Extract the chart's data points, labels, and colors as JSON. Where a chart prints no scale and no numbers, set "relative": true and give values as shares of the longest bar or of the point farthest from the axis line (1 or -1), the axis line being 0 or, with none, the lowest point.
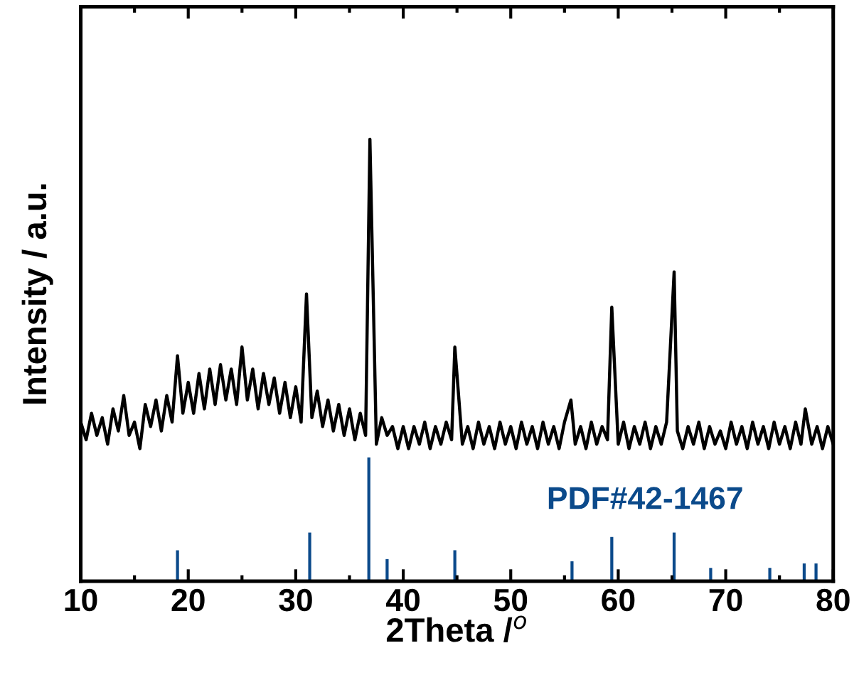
{
  "chart_data": {
    "type": "line",
    "relative": true,
    "xlabel": "2Theta /$^{o}$",
    "ylabel": "Intensity / a.u.",
    "xlim": [
      10,
      80
    ],
    "xticks": [
      10,
      20,
      30,
      40,
      50,
      60,
      70,
      80
    ],
    "grid": false,
    "legend": false,
    "marker": "none",
    "line_style": "solid",
    "tick_labels": "x",
    "series": [
      {
        "color": "#000000",
        "x": [
          10,
          10.5,
          11,
          11.5,
          12,
          12.5,
          13,
          13.5,
          14,
          14.5,
          15,
          15.5,
          16,
          16.5,
          17,
          17.5,
          18,
          18.5,
          19.0,
          19.5,
          20,
          20.5,
          21,
          21.5,
          22,
          22.5,
          23,
          23.5,
          24,
          24.5,
          25,
          25.5,
          26,
          26.5,
          27,
          27.5,
          28,
          28.5,
          29,
          29.5,
          30,
          30.5,
          31.0,
          31.5,
          32,
          32.5,
          33,
          33.5,
          34,
          34.5,
          35,
          35.5,
          36,
          36.5,
          36.9,
          37.5,
          38,
          38.5,
          39,
          39.5,
          40,
          40.5,
          41,
          41.5,
          42,
          42.5,
          43,
          43.5,
          44,
          44.5,
          44.8,
          45.5,
          46,
          46.5,
          47,
          47.5,
          48,
          48.5,
          49,
          49.5,
          50,
          50.5,
          51,
          51.5,
          52,
          52.5,
          53,
          53.5,
          54,
          54.5,
          55,
          55.6,
          56,
          56.5,
          57,
          57.5,
          58,
          58.5,
          59,
          59.4,
          60,
          60.5,
          61,
          61.5,
          62,
          62.5,
          63,
          63.5,
          64,
          64.5,
          65.2,
          65.5,
          66,
          66.5,
          67,
          67.5,
          68,
          68.5,
          69,
          69.5,
          70,
          70.5,
          71,
          71.5,
          72,
          72.5,
          73,
          73.5,
          74,
          74.5,
          75,
          75.5,
          76,
          76.5,
          77,
          77.4,
          78,
          78.5,
          79,
          79.5,
          80
        ],
        "values": [
          0.36,
          0.32,
          0.38,
          0.33,
          0.37,
          0.31,
          0.39,
          0.34,
          0.42,
          0.33,
          0.36,
          0.3,
          0.4,
          0.35,
          0.41,
          0.34,
          0.42,
          0.36,
          0.51,
          0.38,
          0.45,
          0.38,
          0.47,
          0.39,
          0.48,
          0.4,
          0.49,
          0.41,
          0.48,
          0.4,
          0.53,
          0.41,
          0.48,
          0.39,
          0.47,
          0.4,
          0.46,
          0.38,
          0.45,
          0.37,
          0.44,
          0.36,
          0.65,
          0.37,
          0.43,
          0.35,
          0.41,
          0.34,
          0.4,
          0.33,
          0.39,
          0.32,
          0.38,
          0.33,
          1.0,
          0.31,
          0.37,
          0.33,
          0.35,
          0.3,
          0.35,
          0.3,
          0.35,
          0.31,
          0.36,
          0.3,
          0.35,
          0.31,
          0.36,
          0.32,
          0.53,
          0.31,
          0.35,
          0.3,
          0.36,
          0.31,
          0.35,
          0.3,
          0.36,
          0.31,
          0.35,
          0.3,
          0.36,
          0.31,
          0.35,
          0.3,
          0.36,
          0.31,
          0.35,
          0.3,
          0.36,
          0.41,
          0.31,
          0.35,
          0.3,
          0.36,
          0.31,
          0.35,
          0.32,
          0.62,
          0.31,
          0.36,
          0.3,
          0.35,
          0.31,
          0.36,
          0.3,
          0.35,
          0.31,
          0.36,
          0.7,
          0.34,
          0.3,
          0.35,
          0.31,
          0.36,
          0.3,
          0.35,
          0.31,
          0.34,
          0.3,
          0.36,
          0.31,
          0.35,
          0.3,
          0.36,
          0.31,
          0.35,
          0.3,
          0.36,
          0.31,
          0.35,
          0.3,
          0.36,
          0.31,
          0.39,
          0.31,
          0.35,
          0.3,
          0.35,
          0.31
        ]
      },
      {
        "type": "bar",
        "name": "PDF#42-1467",
        "color": "#0b4a8b",
        "x": [
          19.0,
          31.3,
          36.8,
          38.5,
          44.8,
          55.7,
          59.4,
          65.2,
          68.6,
          74.1,
          77.3,
          78.4
        ],
        "values": [
          0.07,
          0.11,
          0.28,
          0.05,
          0.07,
          0.045,
          0.1,
          0.11,
          0.03,
          0.03,
          0.04,
          0.04
        ]
      }
    ]
  }
}
